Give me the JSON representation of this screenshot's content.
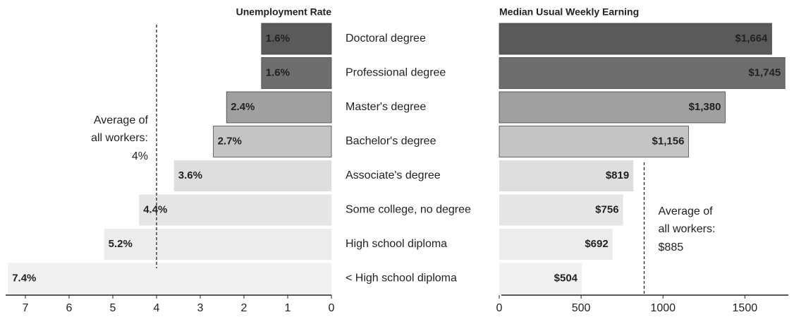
{
  "chart_data": [
    {
      "type": "bar",
      "orientation": "horizontal",
      "title": "Unemployment Rate",
      "categories": [
        "Doctoral degree",
        "Professional degree",
        "Master's degree",
        "Bachelor's degree",
        "Associate's degree",
        "Some college, no degree",
        "High school diploma",
        "< High school diploma"
      ],
      "values": [
        1.6,
        1.6,
        2.4,
        2.7,
        3.6,
        4.4,
        5.2,
        7.4
      ],
      "value_labels": [
        "1.6%",
        "1.6%",
        "2.4%",
        "2.7%",
        "3.6%",
        "4.4%",
        "5.2%",
        "7.4%"
      ],
      "colors": [
        "#5a5a5a",
        "#6e6e6e",
        "#a0a0a0",
        "#c4c4c4",
        "#dedede",
        "#e6e6e6",
        "#ececec",
        "#f1f1f1"
      ],
      "xlim": [
        7.5,
        0
      ],
      "xticks": [
        7,
        6,
        5,
        4,
        3,
        2,
        1,
        0
      ],
      "annotation": {
        "text": [
          "Average of",
          "all workers:"
        ],
        "value": 4,
        "label": "4%"
      }
    },
    {
      "type": "bar",
      "orientation": "horizontal",
      "title": "Median Usual Weekly Earning",
      "values": [
        1664,
        1745,
        1380,
        1156,
        819,
        756,
        692,
        504
      ],
      "value_labels": [
        "$1,664",
        "$1,745",
        "$1,380",
        "$1,156",
        "$819",
        "$756",
        "$692",
        "$504"
      ],
      "colors": [
        "#5a5a5a",
        "#6e6e6e",
        "#a0a0a0",
        "#c4c4c4",
        "#dedede",
        "#e6e6e6",
        "#ececec",
        "#f1f1f1"
      ],
      "xlim": [
        0,
        1800
      ],
      "xticks": [
        0,
        500,
        1000,
        1500
      ],
      "annotation": {
        "text": [
          "Average of",
          "all workers:"
        ],
        "value": 885,
        "label": "$885"
      }
    }
  ]
}
